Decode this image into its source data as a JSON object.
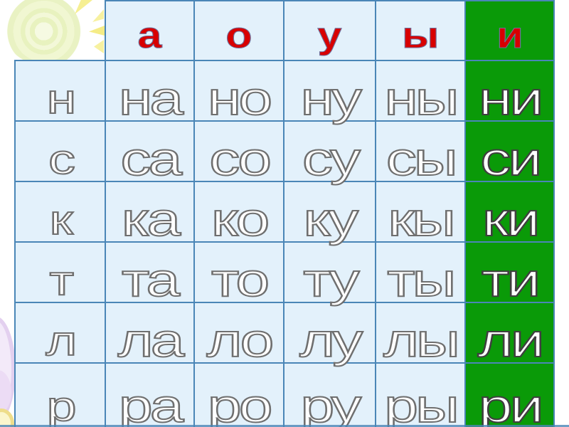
{
  "table": {
    "header": {
      "corner": "",
      "vowels": [
        "а",
        "о",
        "у",
        "ы",
        "и"
      ]
    },
    "rows": [
      {
        "consonant": "н",
        "syllables": [
          "на",
          "но",
          "ну",
          "ны",
          "ни"
        ]
      },
      {
        "consonant": "с",
        "syllables": [
          "са",
          "со",
          "су",
          "сы",
          "си"
        ]
      },
      {
        "consonant": "к",
        "syllables": [
          "ка",
          "ко",
          "ку",
          "кы",
          "ки"
        ]
      },
      {
        "consonant": "т",
        "syllables": [
          "та",
          "то",
          "ту",
          "ты",
          "ти"
        ]
      },
      {
        "consonant": "л",
        "syllables": [
          "ла",
          "ло",
          "лу",
          "лы",
          "ли"
        ]
      },
      {
        "consonant": "р",
        "syllables": [
          "ра",
          "ро",
          "ру",
          "ры",
          "ри"
        ]
      }
    ],
    "highlighted_column": "и",
    "highlighted_column_index": 4
  },
  "palette": {
    "cell_bg": "#e3f1fb",
    "grid_line": "#4a86b7",
    "highlight_green": "#0a9a08",
    "vowel_red": "#d80000",
    "letter_white": "#ffffff",
    "outline_gray": "#6f6f6f",
    "outline_dark": "#3f3f3f"
  }
}
